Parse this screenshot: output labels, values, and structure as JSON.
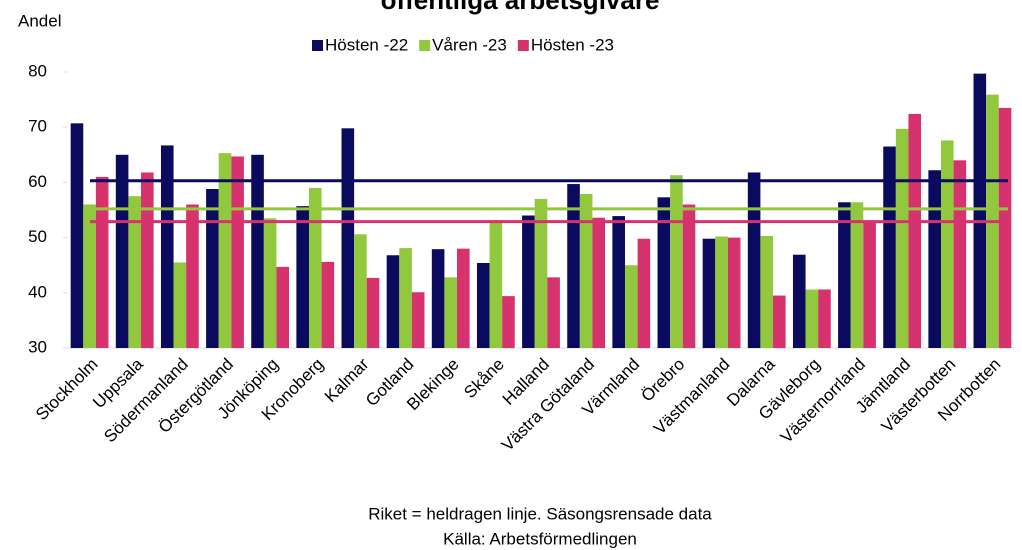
{
  "chart_data": {
    "type": "bar",
    "title": "offentliga arbetsgivare",
    "y_label": "Andel",
    "notes": [
      "Riket = heldragen linje. Säsongsrensade data",
      "Källa: Arbetsförmedlingen"
    ],
    "categories": [
      "Stockholm",
      "Uppsala",
      "Södermanland",
      "Östergötland",
      "Jönköping",
      "Kronoberg",
      "Kalmar",
      "Gotland",
      "Blekinge",
      "Skåne",
      "Halland",
      "Västra Götaland",
      "Värmland",
      "Örebro",
      "Västmanland",
      "Dalarna",
      "Gävleborg",
      "Västernorrland",
      "Jämtland",
      "Västerbotten",
      "Norrbotten"
    ],
    "series": [
      {
        "name": "Hösten -22",
        "color": "#0a0a5e",
        "riket": 60.3,
        "values": [
          70.7,
          65,
          66.7,
          58.8,
          65,
          55.7,
          69.8,
          46.8,
          47.9,
          45.4,
          54,
          59.7,
          53.9,
          57.3,
          49.8,
          61.8,
          46.9,
          56.4,
          66.5,
          62.2,
          79.7
        ]
      },
      {
        "name": "Våren -23",
        "color": "#92c83e",
        "riket": 55.2,
        "values": [
          56,
          57.5,
          45.5,
          65.3,
          53.5,
          59,
          50.6,
          48.1,
          42.8,
          53,
          57,
          57.9,
          45,
          61.3,
          50.2,
          50.3,
          40.6,
          56.4,
          69.7,
          67.6,
          75.9
        ]
      },
      {
        "name": "Hösten -23",
        "color": "#d6336e",
        "riket": 52.9,
        "values": [
          61,
          61.8,
          56,
          64.7,
          44.7,
          45.6,
          42.7,
          40.1,
          48,
          39.4,
          42.8,
          53.6,
          49.8,
          56,
          50,
          39.5,
          40.6,
          53,
          72.4,
          64,
          73.5
        ]
      }
    ],
    "ylim": [
      30,
      80
    ],
    "yticks": [
      30,
      40,
      50,
      60,
      70,
      80
    ],
    "grid": false,
    "legend": "top"
  }
}
